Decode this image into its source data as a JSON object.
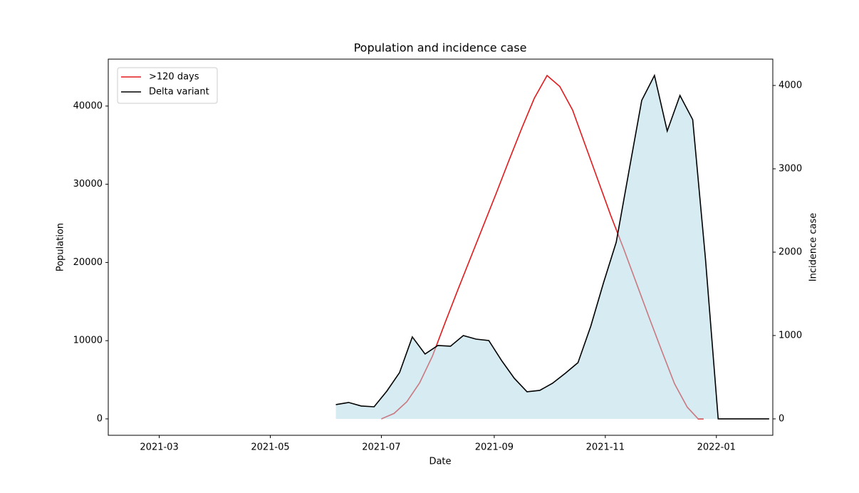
{
  "chart_data": {
    "type": "line",
    "title": "Population and incidence case",
    "xlabel": "Date",
    "ylabel": "Population",
    "y2label": "Incidence case",
    "xlim": [
      "2021-02-01",
      "2022-02-01"
    ],
    "xticks": [
      {
        "value": "2021-03-01",
        "label": "2021-03"
      },
      {
        "value": "2021-05-01",
        "label": "2021-05"
      },
      {
        "value": "2021-07-01",
        "label": "2021-07"
      },
      {
        "value": "2021-09-01",
        "label": "2021-09"
      },
      {
        "value": "2021-11-01",
        "label": "2021-11"
      },
      {
        "value": "2022-01-01",
        "label": "2022-01"
      }
    ],
    "ylim": [
      -2100,
      46000
    ],
    "yticks": [
      0,
      10000,
      20000,
      30000,
      40000
    ],
    "y2lim": [
      -197,
      4316
    ],
    "y2ticks": [
      0,
      1000,
      2000,
      3000,
      4000
    ],
    "legend": "upper left",
    "series": [
      {
        "name": ">120 days",
        "color": "#e41a1c",
        "axis": "y",
        "x": [
          "2021-07-01",
          "2021-07-08",
          "2021-07-15",
          "2021-07-22",
          "2021-07-29",
          "2021-08-05",
          "2021-08-12",
          "2021-08-19",
          "2021-08-26",
          "2021-09-02",
          "2021-09-09",
          "2021-09-16",
          "2021-09-23",
          "2021-09-30",
          "2021-10-07",
          "2021-10-14",
          "2021-10-21",
          "2021-10-28",
          "2021-11-04",
          "2021-11-11",
          "2021-11-18",
          "2021-11-25",
          "2021-12-02",
          "2021-12-09",
          "2021-12-16",
          "2021-12-22",
          "2021-12-25"
        ],
        "values": [
          0,
          700,
          2200,
          4600,
          8000,
          12300,
          16500,
          20600,
          24700,
          28800,
          33000,
          37100,
          41000,
          43900,
          42500,
          39500,
          35000,
          30500,
          26000,
          21800,
          17400,
          13000,
          8700,
          4500,
          1500,
          0,
          0
        ]
      },
      {
        "name": "Delta variant",
        "color": "#000000",
        "axis": "y2",
        "fill_color": "#add8e6",
        "x": [
          "2021-06-06",
          "2021-06-13",
          "2021-06-20",
          "2021-06-27",
          "2021-07-04",
          "2021-07-11",
          "2021-07-18",
          "2021-07-25",
          "2021-08-01",
          "2021-08-08",
          "2021-08-15",
          "2021-08-22",
          "2021-08-29",
          "2021-09-05",
          "2021-09-12",
          "2021-09-19",
          "2021-09-26",
          "2021-10-03",
          "2021-10-10",
          "2021-10-17",
          "2021-10-24",
          "2021-10-31",
          "2021-11-07",
          "2021-11-14",
          "2021-11-21",
          "2021-11-28",
          "2021-12-05",
          "2021-12-12",
          "2021-12-19",
          "2021-12-26",
          "2022-01-02",
          "2022-01-09",
          "2022-01-16",
          "2022-01-23",
          "2022-01-30"
        ],
        "values": [
          171,
          197,
          154,
          145,
          333,
          556,
          983,
          778,
          880,
          872,
          1000,
          957,
          940,
          701,
          487,
          325,
          342,
          427,
          547,
          675,
          1111,
          1632,
          2120,
          2974,
          3821,
          4120,
          3453,
          3880,
          3590,
          1923,
          0,
          0,
          0,
          0,
          0
        ]
      }
    ]
  }
}
